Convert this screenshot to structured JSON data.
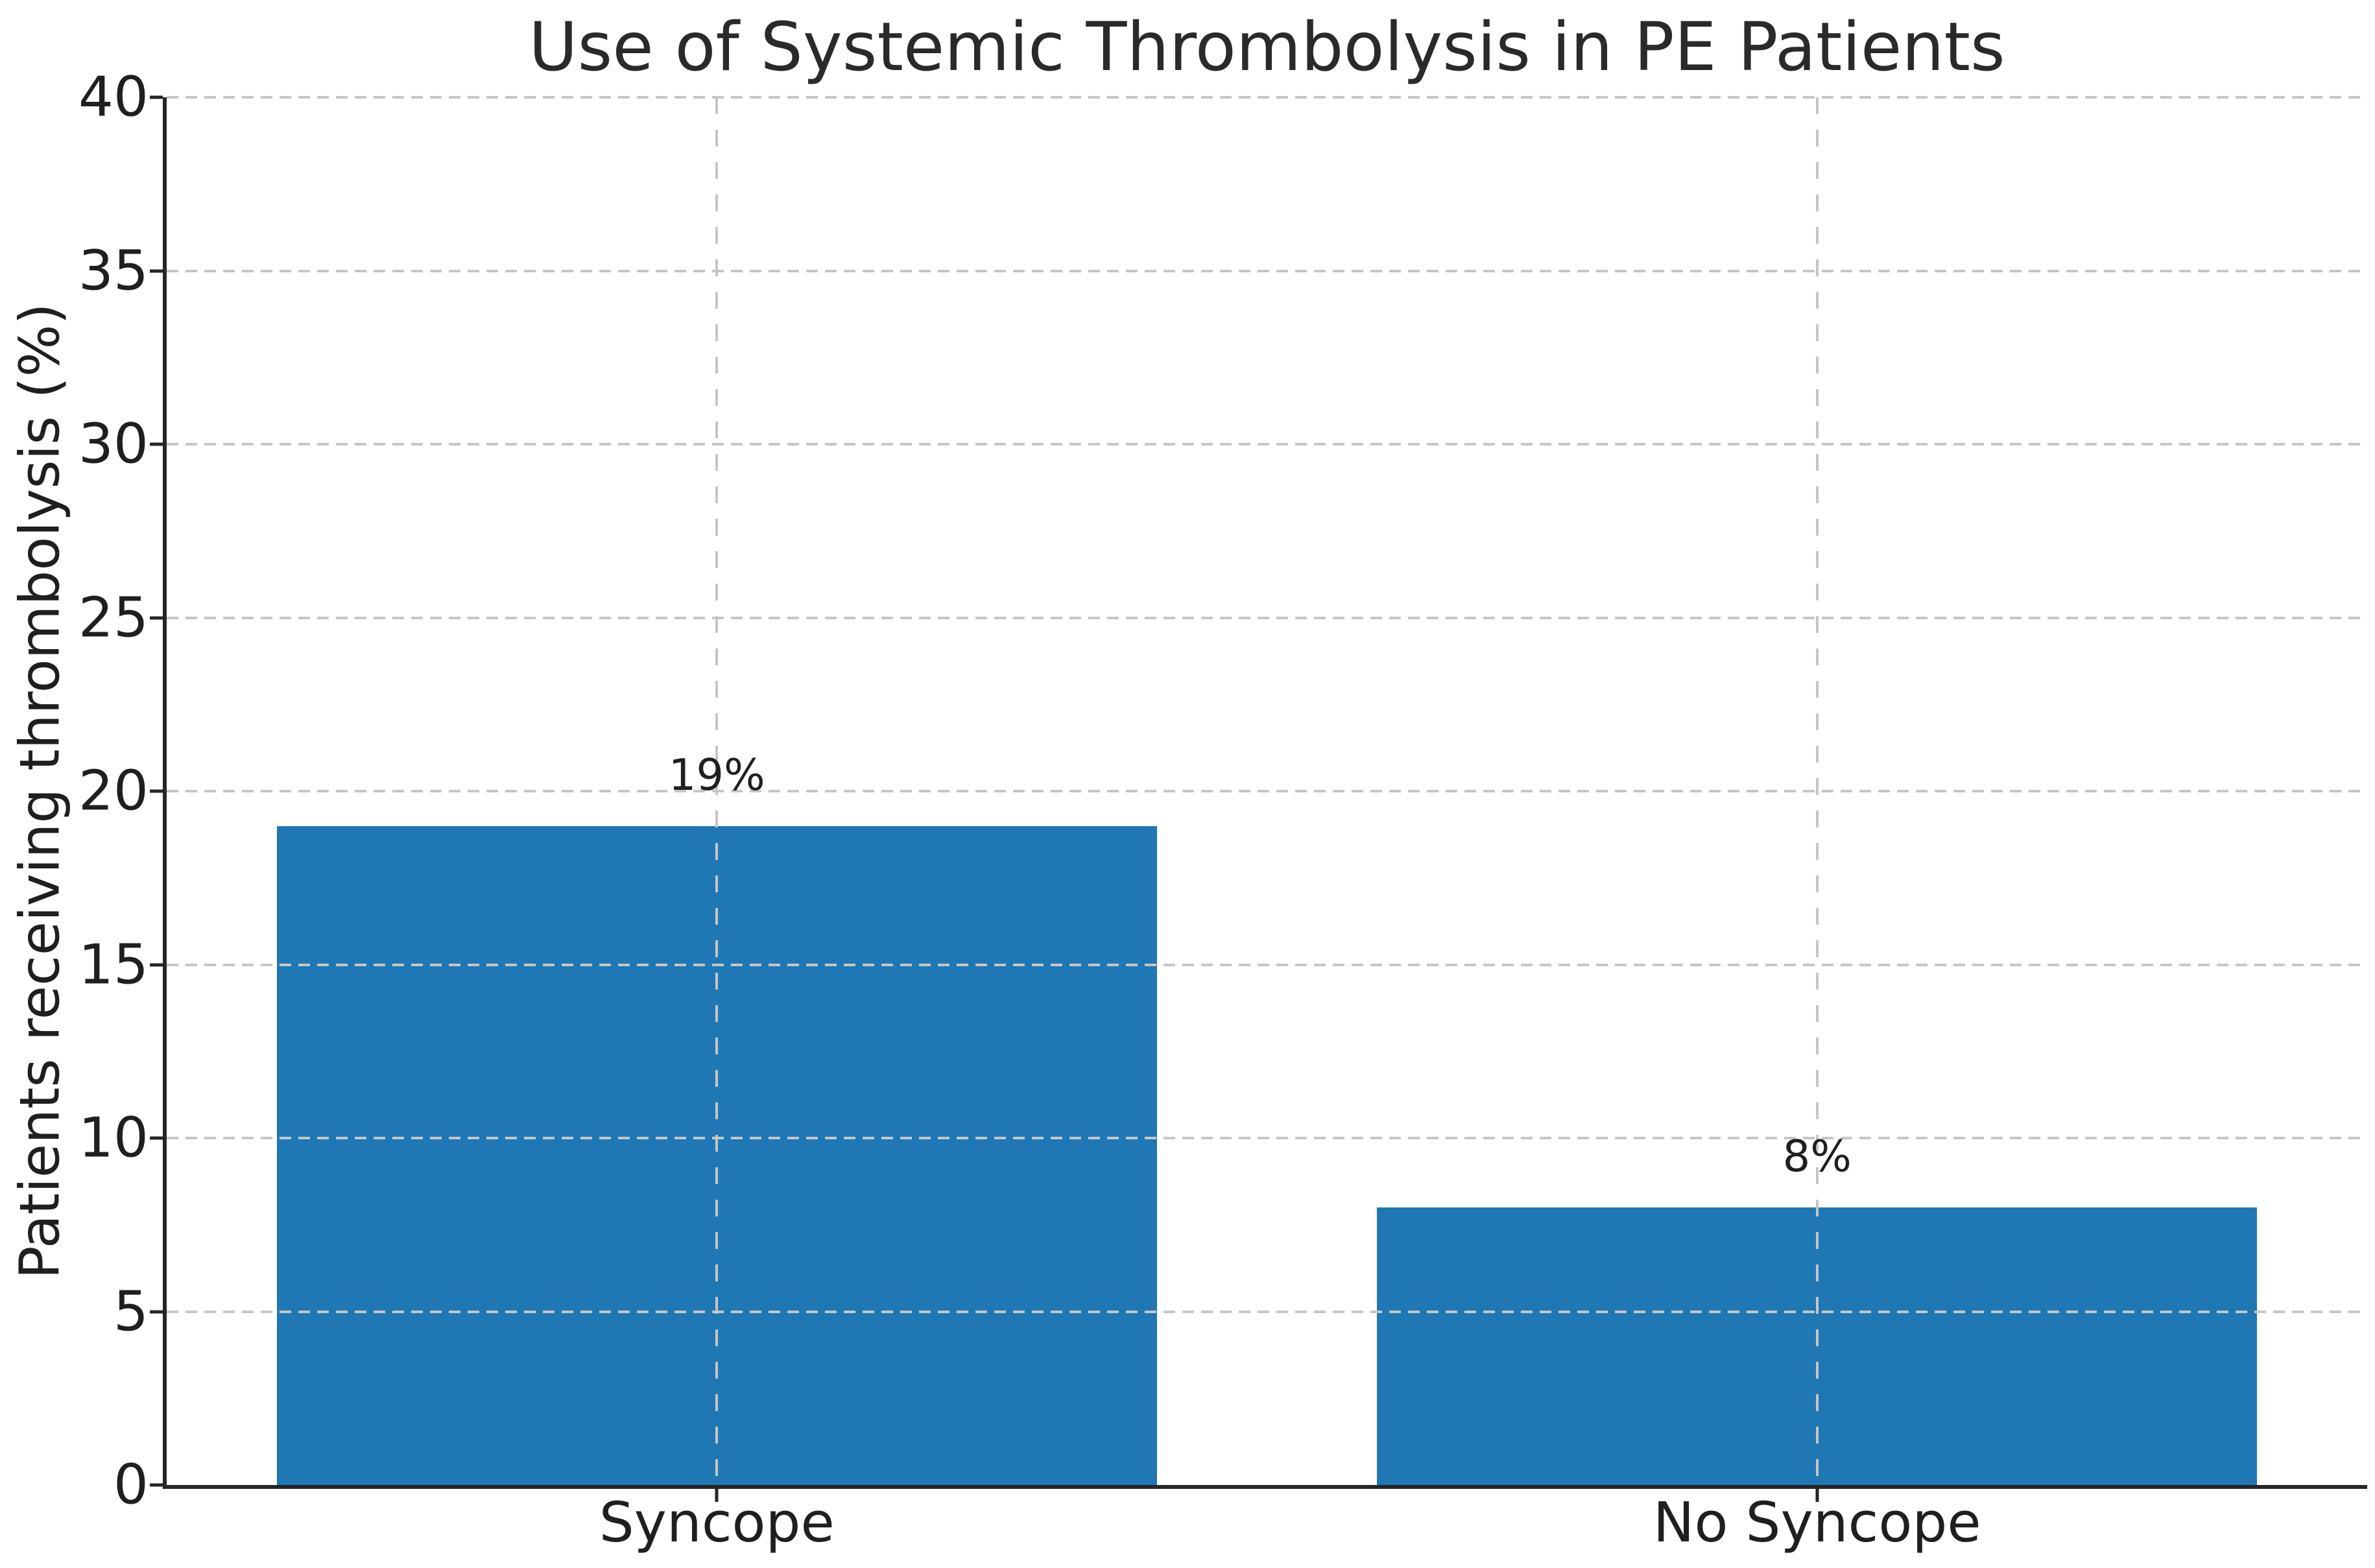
{
  "chart_data": {
    "type": "bar",
    "title": "Use of Systemic Thrombolysis in PE Patients",
    "ylabel": "Patients receiving thrombolysis (%)",
    "xlabel": "",
    "categories": [
      "Syncope",
      "No Syncope"
    ],
    "values": [
      19,
      8
    ],
    "bar_labels": [
      "19%",
      "8%"
    ],
    "ylim": [
      0,
      40
    ],
    "yticks": [
      0,
      5,
      10,
      15,
      20,
      25,
      30,
      35,
      40
    ],
    "bar_width_fraction": 0.8,
    "grid": {
      "visible": true,
      "style": "dashed",
      "axis": "both",
      "drawn_above_bars": true
    },
    "legend_position": "none",
    "spines": [
      "left",
      "bottom"
    ],
    "colors": {
      "bar": "#1f77b4",
      "grid": "#c6c6c6",
      "spine": "#262626",
      "text": "#1f1f1f",
      "background": "#ffffff"
    }
  }
}
